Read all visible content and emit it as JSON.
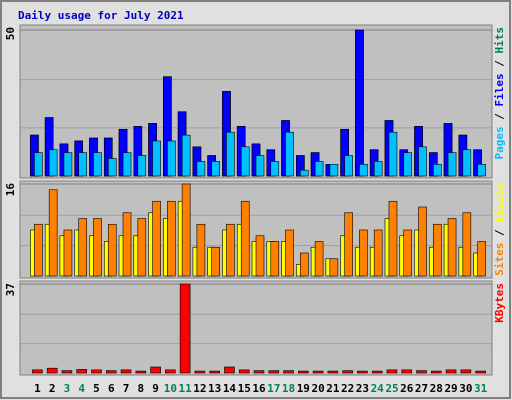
{
  "title": "Daily usage for July 2021",
  "legend_separator": " / ",
  "chart_data": [
    {
      "type": "bar",
      "ylim": [
        0,
        50
      ],
      "yticks": [
        50
      ],
      "series": [
        {
          "name": "Pages",
          "color": "#00c0ff",
          "values": [
            8,
            9,
            8,
            8,
            8,
            6,
            8,
            7,
            12,
            12,
            14,
            5,
            5,
            15,
            10,
            7,
            5,
            15,
            2,
            5,
            4,
            7,
            4,
            5,
            15,
            8,
            10,
            4,
            8,
            9,
            4
          ]
        },
        {
          "name": "Files",
          "color": "#0000ff",
          "values": [
            14,
            20,
            11,
            12,
            13,
            13,
            16,
            17,
            18,
            34,
            22,
            10,
            7,
            29,
            17,
            11,
            9,
            19,
            7,
            8,
            4,
            16,
            50,
            9,
            19,
            9,
            17,
            8,
            18,
            14,
            9
          ]
        },
        {
          "name": "Hits",
          "color": "#00805c",
          "values": [
            14,
            20,
            11,
            12,
            13,
            13,
            16,
            17,
            18,
            34,
            22,
            10,
            7,
            29,
            17,
            11,
            9,
            19,
            7,
            8,
            4,
            16,
            50,
            9,
            19,
            9,
            17,
            8,
            18,
            14,
            9
          ]
        }
      ]
    },
    {
      "type": "bar",
      "ylim": [
        0,
        16
      ],
      "yticks": [
        16
      ],
      "series": [
        {
          "name": "Sites",
          "color": "#ff8000",
          "values": [
            9,
            15,
            8,
            10,
            10,
            9,
            11,
            10,
            13,
            13,
            16,
            9,
            5,
            9,
            13,
            7,
            6,
            8,
            4,
            6,
            3,
            11,
            8,
            8,
            13,
            8,
            12,
            9,
            10,
            11,
            6
          ]
        },
        {
          "name": "Visits",
          "color": "#ffff00",
          "values": [
            8,
            9,
            7,
            8,
            7,
            6,
            7,
            7,
            11,
            10,
            13,
            5,
            5,
            8,
            9,
            6,
            6,
            6,
            2,
            5,
            3,
            7,
            5,
            5,
            10,
            7,
            8,
            5,
            9,
            5,
            4
          ]
        }
      ]
    },
    {
      "type": "bar",
      "ylim": [
        0,
        37
      ],
      "yticks": [
        37
      ],
      "categories": [
        "1",
        "2",
        "3",
        "4",
        "5",
        "6",
        "7",
        "8",
        "9",
        "10",
        "11",
        "12",
        "13",
        "14",
        "15",
        "16",
        "17",
        "18",
        "19",
        "20",
        "21",
        "22",
        "23",
        "24",
        "25",
        "26",
        "27",
        "28",
        "29",
        "30",
        "31"
      ],
      "category_colors": [
        "#000000",
        "#000000",
        "#00805c",
        "#00805c",
        "#000000",
        "#000000",
        "#000000",
        "#000000",
        "#000000",
        "#00805c",
        "#00805c",
        "#000000",
        "#000000",
        "#000000",
        "#000000",
        "#000000",
        "#00805c",
        "#00805c",
        "#000000",
        "#000000",
        "#000000",
        "#000000",
        "#000000",
        "#00805c",
        "#00805c",
        "#000000",
        "#000000",
        "#000000",
        "#000000",
        "#000000",
        "#00805c"
      ],
      "series": [
        {
          "name": "KBytes",
          "color": "#ff0000",
          "values": [
            1.3,
            2,
            1,
            1.5,
            1.3,
            1,
            1.3,
            0.8,
            2.5,
            1.3,
            37,
            0.8,
            0.8,
            2.5,
            1.3,
            1,
            1,
            1,
            0.8,
            0.8,
            0.8,
            1,
            0.8,
            0.8,
            1.3,
            1.3,
            1,
            0.8,
            1.3,
            1.3,
            0.8
          ]
        }
      ]
    }
  ]
}
